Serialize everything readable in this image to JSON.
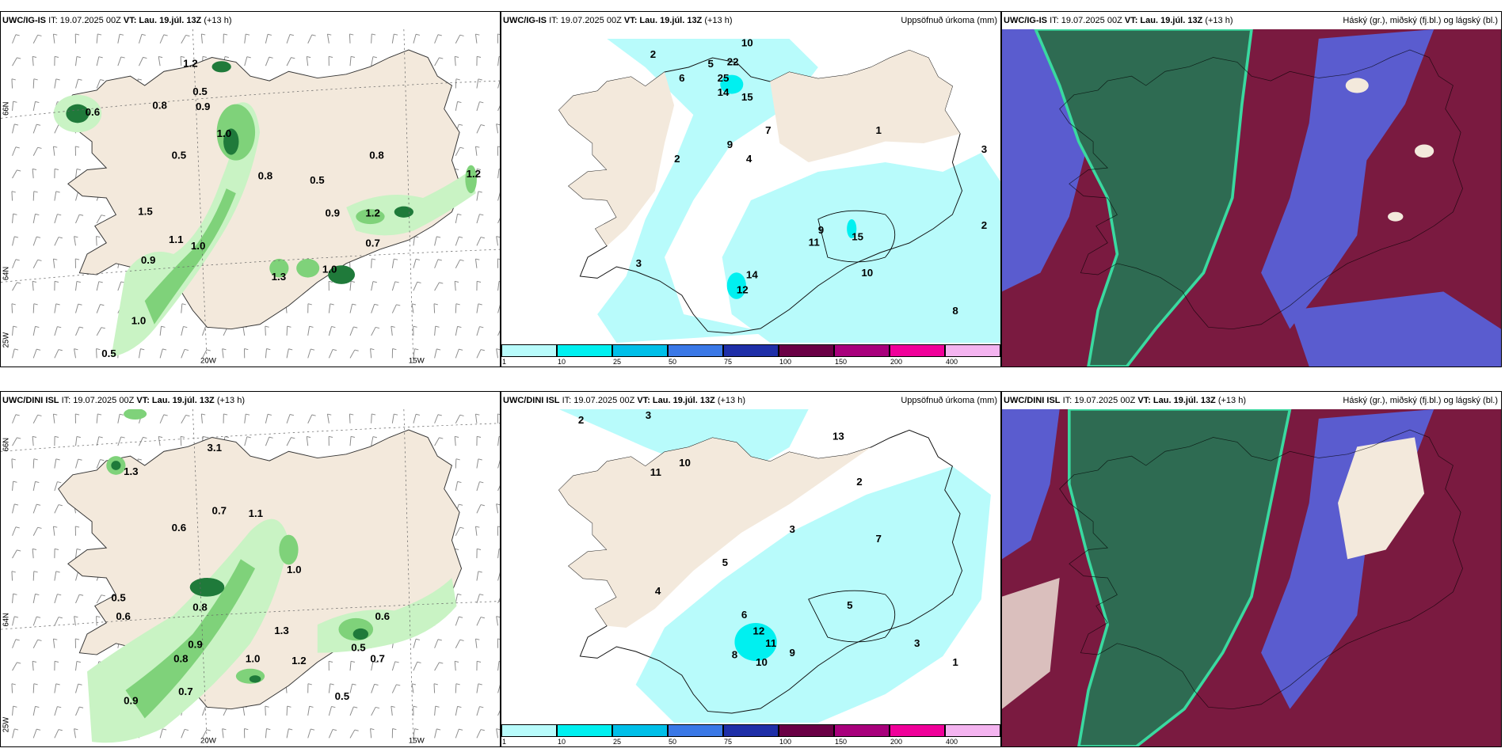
{
  "panels": [
    {
      "model": "UWC/IG-IS",
      "it": "IT: 19.07.2025 00Z",
      "vt_label": "VT:",
      "vt": "Lau. 19.júl. 13Z",
      "lead": "(+13 h)",
      "right": ""
    },
    {
      "model": "UWC/IG-IS",
      "it": "IT: 19.07.2025 00Z",
      "vt_label": "VT:",
      "vt": "Lau. 19.júl. 13Z",
      "lead": "(+13 h)",
      "right": "Uppsöfnuð úrkoma (mm)"
    },
    {
      "model": "UWC/IG-IS",
      "it": "IT: 19.07.2025 00Z",
      "vt_label": "VT:",
      "vt": "Lau. 19.júl. 13Z",
      "lead": "(+13 h)",
      "right": "Háský (gr.), miðský (fj.bl.) og lágský (bl.)"
    },
    {
      "model": "UWC/DINI ISL",
      "it": "IT: 19.07.2025 00Z",
      "vt_label": "VT:",
      "vt": "Lau. 19.júl. 13Z",
      "lead": "(+13 h)",
      "right": ""
    },
    {
      "model": "UWC/DINI ISL",
      "it": "IT: 19.07.2025 00Z",
      "vt_label": "VT:",
      "vt": "Lau. 19.júl. 13Z",
      "lead": "(+13 h)",
      "right": "Uppsöfnuð úrkoma (mm)"
    },
    {
      "model": "UWC/DINI ISL",
      "it": "IT: 19.07.2025 00Z",
      "vt_label": "VT:",
      "vt": "Lau. 19.júl. 13Z",
      "lead": "(+13 h)",
      "right": "Háský (gr.), miðský (fj.bl.) og lágský (bl.)"
    }
  ],
  "grid_labels": {
    "lat66": "66N",
    "lat64": "64N",
    "lon20": "20W",
    "lon15": "15W",
    "lon25": "25W"
  },
  "colorbar": {
    "ticks": [
      "1",
      "10",
      "25",
      "50",
      "75",
      "100",
      "150",
      "200",
      "400"
    ],
    "colors": [
      "#b8fbfb",
      "#00f0f0",
      "#00bfe8",
      "#3a78e6",
      "#1f2fa8",
      "#6a0045",
      "#a8007c",
      "#f0009a",
      "#f4b4f0"
    ]
  },
  "colors": {
    "land": "#f3e9dc",
    "precip_light": "#c9f3c4",
    "precip_mid": "#7fd27a",
    "precip_dark": "#1f7a3a",
    "accum": "#b8fbfb",
    "high_cloud": "#2e6b52",
    "mid_cloud": "#7a1a40",
    "low_cloud": "#5a5ccf"
  },
  "ig_hourly_values": [
    "1.2",
    "0.5",
    "0.8",
    "0.9",
    "0.6",
    "0.5",
    "1.0",
    "0.8",
    "0.5",
    "1.5",
    "1.1",
    "0.9",
    "1.0",
    "0.8",
    "1.2",
    "0.9",
    "1.2",
    "0.7",
    "1.3",
    "1.0",
    "1.0",
    "0.5"
  ],
  "ig_accum_values": [
    "2",
    "10",
    "22",
    "25",
    "14",
    "15",
    "6",
    "9",
    "5",
    "7",
    "4",
    "3",
    "1",
    "2",
    "12",
    "15",
    "14",
    "10",
    "11",
    "9",
    "8",
    "3",
    "2"
  ],
  "dini_hourly_values": [
    "3.1",
    "1.3",
    "0.6",
    "0.7",
    "1.1",
    "1.0",
    "0.8",
    "0.5",
    "0.6",
    "1.3",
    "0.9",
    "0.8",
    "1.2",
    "0.6",
    "0.5",
    "0.7",
    "0.9",
    "1.0",
    "0.7",
    "0.5"
  ],
  "dini_accum_values": [
    "2",
    "3",
    "13",
    "11",
    "10",
    "8",
    "5",
    "9",
    "6",
    "3",
    "4",
    "12",
    "11",
    "10",
    "7",
    "3",
    "5",
    "1",
    "2"
  ]
}
